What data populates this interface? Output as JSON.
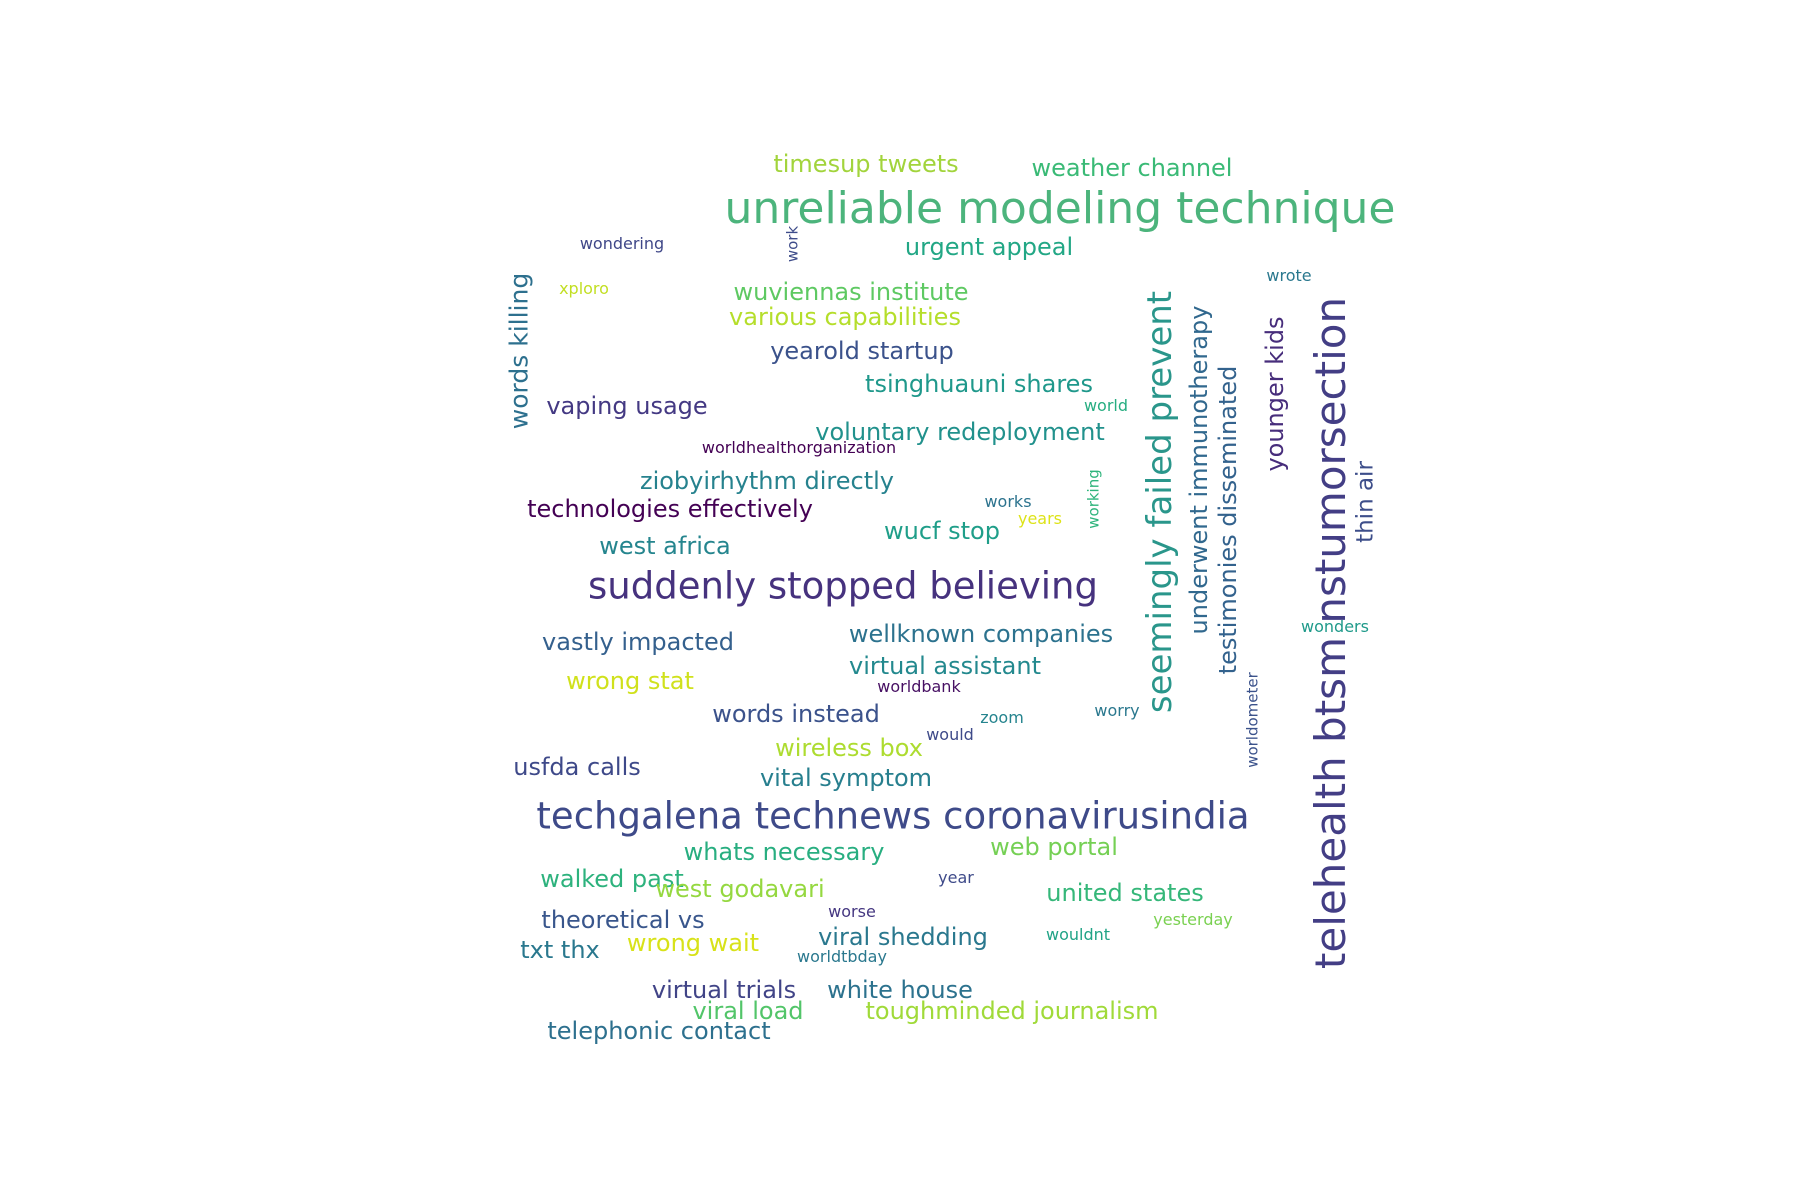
{
  "word_cloud": {
    "words": [
      {
        "text": "unreliable modeling technique",
        "color": "#4cb47c",
        "orientation": "horizontal"
      },
      {
        "text": "telehealth btsm nstumorsection",
        "color": "#433e85",
        "orientation": "vertical"
      },
      {
        "text": "techgalena technews coronavirusindia",
        "color": "#3e4a89",
        "orientation": "horizontal"
      },
      {
        "text": "suddenly stopped believing",
        "color": "#46327e",
        "orientation": "horizontal"
      },
      {
        "text": "seemingly failed prevent",
        "color": "#2a968b",
        "orientation": "vertical"
      },
      {
        "text": "underwent immunotherapy",
        "color": "#31688e",
        "orientation": "vertical"
      },
      {
        "text": "testimonies disseminated",
        "color": "#33628d",
        "orientation": "vertical"
      },
      {
        "text": "younger kids",
        "color": "#472d7b",
        "orientation": "vertical"
      },
      {
        "text": "thin air",
        "color": "#3d4e8a",
        "orientation": "vertical"
      },
      {
        "text": "words killing",
        "color": "#2d708e",
        "orientation": "vertical"
      },
      {
        "text": "timesup tweets",
        "color": "#a2d43c",
        "orientation": "horizontal"
      },
      {
        "text": "weather channel",
        "color": "#3aba76",
        "orientation": "horizontal"
      },
      {
        "text": "urgent appeal",
        "color": "#22a785",
        "orientation": "horizontal"
      },
      {
        "text": "wuviennas institute",
        "color": "#5ec962",
        "orientation": "horizontal"
      },
      {
        "text": "various capabilities",
        "color": "#b5de2b",
        "orientation": "horizontal"
      },
      {
        "text": "yearold startup",
        "color": "#3b528b",
        "orientation": "horizontal"
      },
      {
        "text": "tsinghuauni shares",
        "color": "#1f988b",
        "orientation": "horizontal"
      },
      {
        "text": "vaping usage",
        "color": "#443983",
        "orientation": "horizontal"
      },
      {
        "text": "voluntary redeployment",
        "color": "#21918c",
        "orientation": "horizontal"
      },
      {
        "text": "ziobyirhythm directly",
        "color": "#26828e",
        "orientation": "horizontal"
      },
      {
        "text": "technologies effectively",
        "color": "#440154",
        "orientation": "horizontal"
      },
      {
        "text": "west africa",
        "color": "#25858e",
        "orientation": "horizontal"
      },
      {
        "text": "wucf stop",
        "color": "#1f9e89",
        "orientation": "horizontal"
      },
      {
        "text": "vastly impacted",
        "color": "#34608d",
        "orientation": "horizontal"
      },
      {
        "text": "wellknown companies",
        "color": "#2c728e",
        "orientation": "horizontal"
      },
      {
        "text": "virtual assistant",
        "color": "#23898e",
        "orientation": "horizontal"
      },
      {
        "text": "wrong stat",
        "color": "#d0e11c",
        "orientation": "horizontal"
      },
      {
        "text": "words instead",
        "color": "#3b528b",
        "orientation": "horizontal"
      },
      {
        "text": "wireless box",
        "color": "#addc30",
        "orientation": "horizontal"
      },
      {
        "text": "usfda calls",
        "color": "#3e4989",
        "orientation": "horizontal"
      },
      {
        "text": "vital symptom",
        "color": "#277f8e",
        "orientation": "horizontal"
      },
      {
        "text": "web portal",
        "color": "#75d054",
        "orientation": "horizontal"
      },
      {
        "text": "whats necessary",
        "color": "#28ae80",
        "orientation": "horizontal"
      },
      {
        "text": "united states",
        "color": "#35b779",
        "orientation": "horizontal"
      },
      {
        "text": "walked past",
        "color": "#2db27d",
        "orientation": "horizontal"
      },
      {
        "text": "west godavari",
        "color": "#95d840",
        "orientation": "horizontal"
      },
      {
        "text": "theoretical vs",
        "color": "#39568c",
        "orientation": "horizontal"
      },
      {
        "text": "txt thx",
        "color": "#2a788e",
        "orientation": "horizontal"
      },
      {
        "text": "wrong wait",
        "color": "#d8e219",
        "orientation": "horizontal"
      },
      {
        "text": "viral shedding",
        "color": "#2a788e",
        "orientation": "horizontal"
      },
      {
        "text": "virtual trials",
        "color": "#414487",
        "orientation": "horizontal"
      },
      {
        "text": "white house",
        "color": "#2c728e",
        "orientation": "horizontal"
      },
      {
        "text": "viral load",
        "color": "#52c569",
        "orientation": "horizontal"
      },
      {
        "text": "toughminded journalism",
        "color": "#a0da39",
        "orientation": "horizontal"
      },
      {
        "text": "telephonic contact",
        "color": "#2d708e",
        "orientation": "horizontal"
      },
      {
        "text": "wondering",
        "color": "#3f4788",
        "orientation": "horizontal"
      },
      {
        "text": "work",
        "color": "#3e4c8a",
        "orientation": "vertical"
      },
      {
        "text": "xploro",
        "color": "#c2df23",
        "orientation": "horizontal"
      },
      {
        "text": "wrote",
        "color": "#2a788e",
        "orientation": "horizontal"
      },
      {
        "text": "world",
        "color": "#27ad81",
        "orientation": "horizontal"
      },
      {
        "text": "worldhealthorganization",
        "color": "#440154",
        "orientation": "horizontal"
      },
      {
        "text": "works",
        "color": "#2c738e",
        "orientation": "horizontal"
      },
      {
        "text": "years",
        "color": "#dde318",
        "orientation": "horizontal"
      },
      {
        "text": "working",
        "color": "#2fb47c",
        "orientation": "vertical"
      },
      {
        "text": "wonders",
        "color": "#1f9a8a",
        "orientation": "horizontal"
      },
      {
        "text": "worldbank",
        "color": "#471063",
        "orientation": "horizontal"
      },
      {
        "text": "zoom",
        "color": "#25848e",
        "orientation": "horizontal"
      },
      {
        "text": "worry",
        "color": "#2a788e",
        "orientation": "horizontal"
      },
      {
        "text": "would",
        "color": "#3e4a89",
        "orientation": "horizontal"
      },
      {
        "text": "worldometer",
        "color": "#3b528b",
        "orientation": "vertical"
      },
      {
        "text": "year",
        "color": "#3e4a89",
        "orientation": "horizontal"
      },
      {
        "text": "worse",
        "color": "#453781",
        "orientation": "horizontal"
      },
      {
        "text": "wouldnt",
        "color": "#20a386",
        "orientation": "horizontal"
      },
      {
        "text": "yesterday",
        "color": "#7ad151",
        "orientation": "horizontal"
      },
      {
        "text": "worldtbday",
        "color": "#2a788e",
        "orientation": "horizontal"
      }
    ]
  }
}
